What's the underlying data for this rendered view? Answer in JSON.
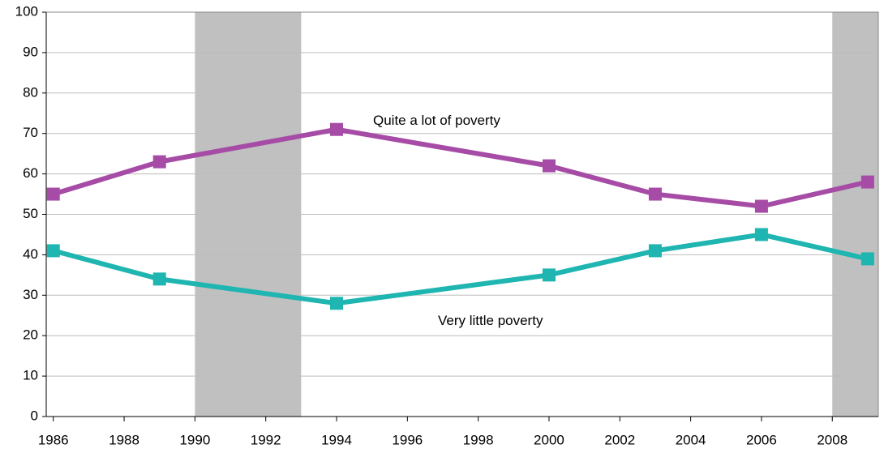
{
  "chart_data": {
    "type": "line",
    "x": [
      1986,
      1989,
      1994,
      2000,
      2003,
      2006,
      2009
    ],
    "series": [
      {
        "name": "Quite a lot of poverty",
        "color": "#a64ca6",
        "values": [
          55,
          63,
          71,
          62,
          55,
          52,
          58
        ]
      },
      {
        "name": "Very little poverty",
        "color": "#1fb5b0",
        "values": [
          41,
          34,
          28,
          35,
          41,
          45,
          39
        ]
      }
    ],
    "shaded_spans": [
      [
        1990,
        1993
      ],
      [
        2008,
        2009.3
      ]
    ],
    "shade_color": "#c0c0c0",
    "xlim": [
      1985.8,
      2009.3
    ],
    "xticks": [
      1986,
      1988,
      1990,
      1992,
      1994,
      1996,
      1998,
      2000,
      2002,
      2004,
      2006,
      2008
    ],
    "ylim": [
      0,
      100
    ],
    "yticks": [
      0,
      10,
      20,
      30,
      40,
      50,
      60,
      70,
      80,
      90,
      100
    ],
    "grid": true
  }
}
